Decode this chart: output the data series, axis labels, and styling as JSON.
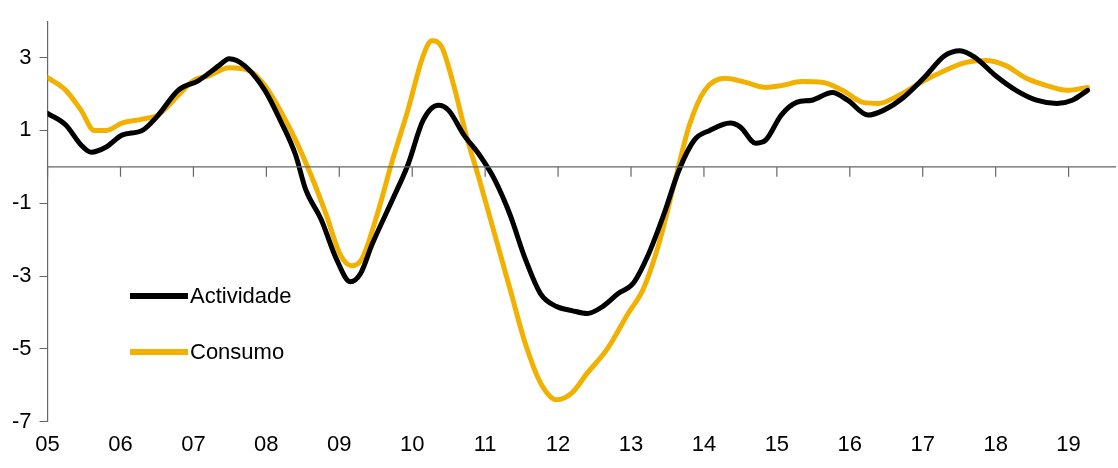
{
  "chart_data": {
    "type": "line",
    "legend": "bottom left",
    "grid": false,
    "marker": "none",
    "line_style": "solid",
    "xlim": [
      2005,
      2019.65
    ],
    "xticks": [
      {
        "value": 2005,
        "label": "05"
      },
      {
        "value": 2006,
        "label": "06"
      },
      {
        "value": 2007,
        "label": "07"
      },
      {
        "value": 2008,
        "label": "08"
      },
      {
        "value": 2009,
        "label": "09"
      },
      {
        "value": 2010,
        "label": "10"
      },
      {
        "value": 2011,
        "label": "11"
      },
      {
        "value": 2012,
        "label": "12"
      },
      {
        "value": 2013,
        "label": "13"
      },
      {
        "value": 2014,
        "label": "14"
      },
      {
        "value": 2015,
        "label": "15"
      },
      {
        "value": 2016,
        "label": "16"
      },
      {
        "value": 2017,
        "label": "17"
      },
      {
        "value": 2018,
        "label": "18"
      },
      {
        "value": 2019,
        "label": "19"
      }
    ],
    "ylim": [
      -7,
      4
    ],
    "yticks": [
      -7,
      -5,
      -3,
      -1,
      1,
      3
    ],
    "ref_lines": [
      {
        "axis": "y",
        "value": 0
      }
    ],
    "series": [
      {
        "name": "Actividade",
        "color": "#000000",
        "x": [
          2005.0,
          2005.25,
          2005.46,
          2005.6,
          2005.81,
          2006.02,
          2006.3,
          2006.51,
          2006.79,
          2007.07,
          2007.35,
          2007.49,
          2007.7,
          2007.98,
          2008.19,
          2008.4,
          2008.54,
          2008.75,
          2008.96,
          2009.15,
          2009.29,
          2009.45,
          2009.73,
          2009.94,
          2010.15,
          2010.36,
          2010.5,
          2010.71,
          2010.92,
          2011.13,
          2011.34,
          2011.55,
          2011.76,
          2011.98,
          2012.19,
          2012.4,
          2012.61,
          2012.82,
          2013.03,
          2013.24,
          2013.45,
          2013.66,
          2013.87,
          2014.08,
          2014.36,
          2014.5,
          2014.71,
          2014.85,
          2015.06,
          2015.27,
          2015.48,
          2015.76,
          2015.97,
          2016.25,
          2016.46,
          2016.74,
          2017.02,
          2017.3,
          2017.51,
          2017.72,
          2018.0,
          2018.28,
          2018.56,
          2018.84,
          2019.05,
          2019.26
        ],
        "values": [
          1.47,
          1.15,
          0.6,
          0.4,
          0.55,
          0.87,
          1.0,
          1.4,
          2.1,
          2.37,
          2.78,
          2.97,
          2.78,
          2.1,
          1.28,
          0.33,
          -0.63,
          -1.44,
          -2.53,
          -3.16,
          -2.94,
          -2.13,
          -0.9,
          0.05,
          1.28,
          1.69,
          1.55,
          0.87,
          0.33,
          -0.35,
          -1.31,
          -2.53,
          -3.49,
          -3.84,
          -3.95,
          -4.03,
          -3.84,
          -3.49,
          -3.2,
          -2.4,
          -1.31,
          -0.08,
          0.74,
          1.0,
          1.2,
          1.09,
          0.65,
          0.74,
          1.42,
          1.77,
          1.83,
          2.04,
          1.83,
          1.42,
          1.55,
          1.91,
          2.45,
          3.05,
          3.19,
          3.0,
          2.5,
          2.1,
          1.83,
          1.74,
          1.83,
          2.1
        ]
      },
      {
        "name": "Consumo",
        "color": "#f2b100",
        "x": [
          2005.0,
          2005.25,
          2005.46,
          2005.64,
          2005.81,
          2006.02,
          2006.3,
          2006.51,
          2006.79,
          2007.0,
          2007.21,
          2007.49,
          2007.77,
          2007.98,
          2008.19,
          2008.4,
          2008.61,
          2008.82,
          2009.01,
          2009.17,
          2009.31,
          2009.52,
          2009.73,
          2009.94,
          2010.15,
          2010.27,
          2010.41,
          2010.57,
          2010.74,
          2010.92,
          2011.13,
          2011.34,
          2011.55,
          2011.76,
          2011.98,
          2012.19,
          2012.4,
          2012.68,
          2012.96,
          2013.17,
          2013.38,
          2013.59,
          2013.8,
          2014.01,
          2014.29,
          2014.57,
          2014.85,
          2015.06,
          2015.34,
          2015.62,
          2015.9,
          2016.18,
          2016.39,
          2016.67,
          2017.02,
          2017.3,
          2017.58,
          2017.86,
          2018.14,
          2018.42,
          2018.7,
          2018.98,
          2019.26
        ],
        "values": [
          2.45,
          2.1,
          1.55,
          1.0,
          1.0,
          1.2,
          1.31,
          1.42,
          1.96,
          2.37,
          2.5,
          2.72,
          2.64,
          2.23,
          1.55,
          0.74,
          -0.22,
          -1.31,
          -2.4,
          -2.72,
          -2.53,
          -1.31,
          0.19,
          1.55,
          3.05,
          3.46,
          3.27,
          2.23,
          0.87,
          -0.35,
          -1.85,
          -3.35,
          -4.85,
          -5.94,
          -6.4,
          -6.21,
          -5.67,
          -4.99,
          -4.03,
          -3.35,
          -2.13,
          -0.49,
          1.14,
          2.1,
          2.43,
          2.32,
          2.18,
          2.23,
          2.34,
          2.32,
          2.1,
          1.77,
          1.74,
          1.96,
          2.37,
          2.64,
          2.86,
          2.92,
          2.78,
          2.43,
          2.23,
          2.1,
          2.18
        ]
      }
    ]
  }
}
